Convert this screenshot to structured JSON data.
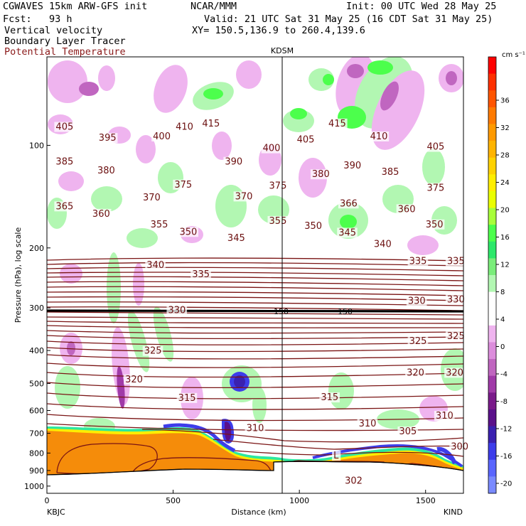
{
  "header": {
    "model": "CGWAVES 15km ARW-GFS init",
    "org": "NCAR/MMM",
    "init": "Init: 00 UTC Wed 28 May 25",
    "fcst": "Fcst:   93 h",
    "valid": "Valid: 21 UTC Sat 31 May 25 (16 CDT Sat 31 May 25)",
    "xy": "XY= 150.5,136.9 to 260.4,139.6",
    "field1": "Vertical velocity",
    "field2": "Boundary Layer Tracer",
    "field3": "Potential Temperature"
  },
  "colors": {
    "theta": "#7a1414",
    "terrain": "#ffffff",
    "bl_tracer": "#f58c0a",
    "tropopause": "#000000"
  },
  "chart_data": {
    "type": "heatmap",
    "title": "",
    "xlabel": "Distance (km)",
    "ylabel": "Pressure (hPa), log scale",
    "x_range": [
      0,
      1650
    ],
    "y_range": [
      1050,
      55
    ],
    "y_scale": "log",
    "marker_label": "KDSM",
    "marker_x": 930,
    "left_station": "KBJC",
    "right_station": "KIND",
    "x_ticks": [
      "0",
      "500",
      "1000",
      "1500"
    ],
    "x_tick_values": [
      0,
      500,
      1000,
      1500
    ],
    "y_ticks": [
      "100",
      "200",
      "300",
      "400",
      "500",
      "600",
      "700",
      "800",
      "900",
      "1000"
    ],
    "y_tick_values": [
      100,
      200,
      300,
      400,
      500,
      600,
      700,
      800,
      900,
      1000
    ],
    "colorbar": {
      "unit": "cm s⁻¹",
      "labels": [
        "36",
        "32",
        "28",
        "24",
        "20",
        "16",
        "12",
        "8",
        "4",
        "0",
        "-4",
        "-8",
        "-12",
        "-16",
        "-20"
      ],
      "levels": [
        36,
        32,
        28,
        24,
        20,
        16,
        12,
        8,
        4,
        0,
        -4,
        -8,
        -12,
        -16,
        -20
      ],
      "colors": [
        "#ff0000",
        "#ff3000",
        "#ff5500",
        "#ff7a00",
        "#ff9a00",
        "#ffb400",
        "#ffd200",
        "#ffee00",
        "#eaff00",
        "#a8ff3a",
        "#4cff4c",
        "#2ce86a",
        "#7aed7a",
        "#b2f7b2",
        "#ffffff",
        "#ffffff",
        "#efb4ef",
        "#dc8ddc",
        "#c066c0",
        "#a03aa8",
        "#7a1a8a",
        "#5a108a",
        "#3a20b0",
        "#3d3dea",
        "#5a66ff",
        "#7a8aff"
      ]
    },
    "theta_labels": [
      {
        "text": "405",
        "x": 35,
        "p": 90
      },
      {
        "text": "415",
        "x": 615,
        "p": 88
      },
      {
        "text": "415",
        "x": 1115,
        "p": 88
      },
      {
        "text": "410",
        "x": 510,
        "p": 90
      },
      {
        "text": "410",
        "x": 1280,
        "p": 96
      },
      {
        "text": "405",
        "x": 990,
        "p": 98
      },
      {
        "text": "405",
        "x": 1505,
        "p": 103
      },
      {
        "text": "395",
        "x": 205,
        "p": 97
      },
      {
        "text": "400",
        "x": 420,
        "p": 96
      },
      {
        "text": "400",
        "x": 855,
        "p": 104
      },
      {
        "text": "385",
        "x": 35,
        "p": 114
      },
      {
        "text": "380",
        "x": 200,
        "p": 121
      },
      {
        "text": "390",
        "x": 705,
        "p": 114
      },
      {
        "text": "390",
        "x": 1175,
        "p": 117
      },
      {
        "text": "385",
        "x": 1325,
        "p": 122
      },
      {
        "text": "380",
        "x": 1050,
        "p": 124
      },
      {
        "text": "375",
        "x": 505,
        "p": 133
      },
      {
        "text": "370",
        "x": 380,
        "p": 145
      },
      {
        "text": "375",
        "x": 880,
        "p": 134
      },
      {
        "text": "375",
        "x": 1505,
        "p": 136
      },
      {
        "text": "370",
        "x": 745,
        "p": 144
      },
      {
        "text": "366",
        "x": 1160,
        "p": 151
      },
      {
        "text": "365",
        "x": 35,
        "p": 154
      },
      {
        "text": "360",
        "x": 180,
        "p": 162
      },
      {
        "text": "360",
        "x": 1390,
        "p": 157
      },
      {
        "text": "355",
        "x": 410,
        "p": 174
      },
      {
        "text": "355",
        "x": 880,
        "p": 170
      },
      {
        "text": "350",
        "x": 525,
        "p": 183
      },
      {
        "text": "350",
        "x": 1020,
        "p": 176
      },
      {
        "text": "350",
        "x": 1500,
        "p": 174
      },
      {
        "text": "345",
        "x": 715,
        "p": 191
      },
      {
        "text": "345",
        "x": 1155,
        "p": 184
      },
      {
        "text": "340",
        "x": 395,
        "p": 229
      },
      {
        "text": "340",
        "x": 1295,
        "p": 199
      },
      {
        "text": "335",
        "x": 575,
        "p": 244
      },
      {
        "text": "335",
        "x": 1435,
        "p": 223
      },
      {
        "text": "335",
        "x": 1585,
        "p": 223
      },
      {
        "text": "330",
        "x": 480,
        "p": 311
      },
      {
        "text": "330",
        "x": 1430,
        "p": 292
      },
      {
        "text": "330",
        "x": 1585,
        "p": 289
      },
      {
        "text": "325",
        "x": 385,
        "p": 409
      },
      {
        "text": "325",
        "x": 1435,
        "p": 383
      },
      {
        "text": "325",
        "x": 1585,
        "p": 370
      },
      {
        "text": "320",
        "x": 310,
        "p": 496
      },
      {
        "text": "320",
        "x": 1425,
        "p": 474
      },
      {
        "text": "320",
        "x": 1580,
        "p": 474
      },
      {
        "text": "315",
        "x": 520,
        "p": 562
      },
      {
        "text": "315",
        "x": 1085,
        "p": 560
      },
      {
        "text": "310",
        "x": 790,
        "p": 690
      },
      {
        "text": "310",
        "x": 1235,
        "p": 669
      },
      {
        "text": "310",
        "x": 1540,
        "p": 634
      },
      {
        "text": "305",
        "x": 1395,
        "p": 705
      },
      {
        "text": "300",
        "x": 1600,
        "p": 781
      },
      {
        "text": "302",
        "x": 1180,
        "p": 985
      },
      {
        "text": "L",
        "x": 1135,
        "p": 830
      }
    ],
    "tropopause_label": "150"
  }
}
